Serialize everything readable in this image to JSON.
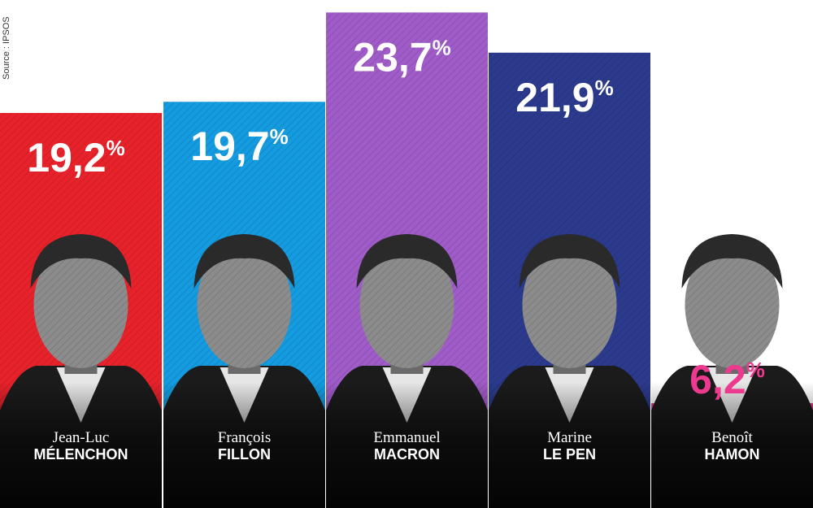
{
  "source": "Source : IPSOS",
  "chart_data": {
    "type": "bar",
    "categories": [
      "Jean-Luc MÉLENCHON",
      "François FILLON",
      "Emmanuel MACRON",
      "Marine LE PEN",
      "Benoît HAMON"
    ],
    "values": [
      19.2,
      19.7,
      23.7,
      21.9,
      6.2
    ],
    "value_unit": "%",
    "candidates": [
      {
        "first_name": "Jean-Luc",
        "last_name": "MÉLENCHON",
        "value_text": "19,2",
        "pct": "%",
        "color": "#e8222b",
        "label_color": "#ffffff"
      },
      {
        "first_name": "François",
        "last_name": "FILLON",
        "value_text": "19,7",
        "pct": "%",
        "color": "#159be0",
        "label_color": "#ffffff"
      },
      {
        "first_name": "Emmanuel",
        "last_name": "MACRON",
        "value_text": "23,7",
        "pct": "%",
        "color": "#a05cc8",
        "label_color": "#ffffff"
      },
      {
        "first_name": "Marine",
        "last_name": "LE PEN",
        "value_text": "21,9",
        "pct": "%",
        "color": "#2b3a8c",
        "label_color": "#ffffff"
      },
      {
        "first_name": "Benoît",
        "last_name": "HAMON",
        "value_text": "6,2",
        "pct": "%",
        "color": "#ee3a8e",
        "label_color": "#ee3a8e"
      }
    ],
    "grid": false,
    "legend": "none"
  }
}
